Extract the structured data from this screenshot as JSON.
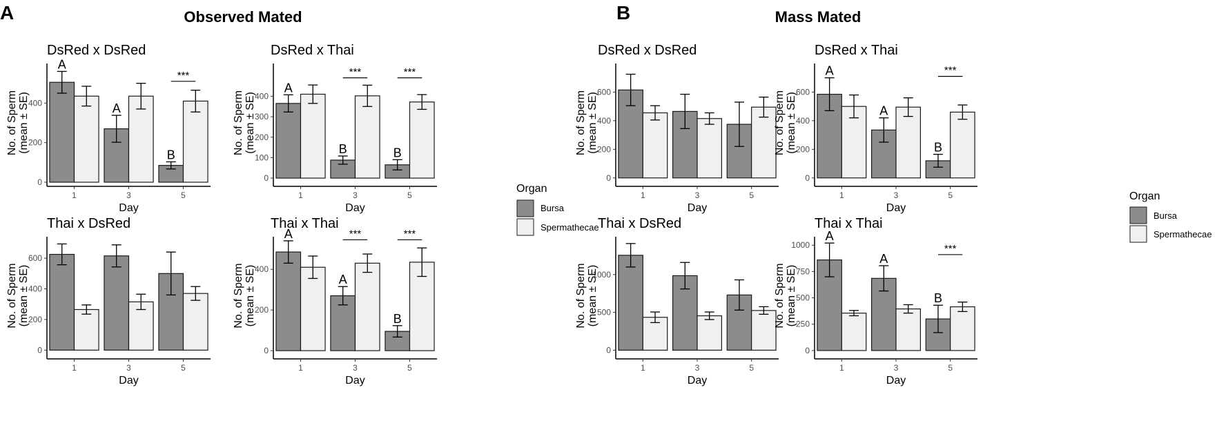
{
  "figure": {
    "panels": [
      {
        "letter": "A",
        "title": "Observed Mated"
      },
      {
        "letter": "B",
        "title": "Mass Mated"
      }
    ],
    "legends": [
      {
        "title": "Organ",
        "items": [
          {
            "label": "Bursa",
            "color": "#8c8c8c"
          },
          {
            "label": "Spermathecae",
            "color": "#f0f0f0"
          }
        ]
      },
      {
        "title": "Organ",
        "items": [
          {
            "label": "Bursa",
            "color": "#8c8c8c"
          },
          {
            "label": "Spermathecae",
            "color": "#f0f0f0"
          }
        ]
      }
    ]
  },
  "colors": {
    "bursa": "#8c8c8c",
    "spermathecae": "#f0f0f0",
    "outline": "#1a1a1a",
    "axis": "#000000"
  },
  "chart_data": [
    {
      "type": "bar",
      "panel": "A",
      "title": "DsRed x DsRed",
      "xlabel": "Day",
      "ylabel": [
        "No. of Sperm",
        "(mean ± SE)"
      ],
      "categories": [
        "1",
        "3",
        "5"
      ],
      "ylim": [
        0,
        600
      ],
      "yticks": [
        0,
        200,
        400
      ],
      "series": [
        {
          "name": "Bursa",
          "values": [
            505,
            270,
            85
          ],
          "errors": [
            55,
            68,
            18
          ]
        },
        {
          "name": "Spermathecae",
          "values": [
            435,
            435,
            410
          ],
          "errors": [
            50,
            65,
            55
          ]
        }
      ],
      "letters": [
        {
          "category": 0,
          "series": 0,
          "text": "A"
        },
        {
          "category": 1,
          "series": 0,
          "text": "A"
        },
        {
          "category": 2,
          "series": 0,
          "text": "B"
        }
      ],
      "significance": [
        {
          "category": 2,
          "text": "***",
          "y": 510
        }
      ]
    },
    {
      "type": "bar",
      "panel": "A",
      "title": "DsRed x Thai",
      "xlabel": "Day",
      "ylabel": [
        "No. of Sperm",
        "(mean ± SE)"
      ],
      "categories": [
        "1",
        "3",
        "5"
      ],
      "ylim": [
        -20,
        560
      ],
      "yticks": [
        0,
        100,
        200,
        300,
        400
      ],
      "series": [
        {
          "name": "Bursa",
          "values": [
            365,
            88,
            65
          ],
          "errors": [
            42,
            20,
            25
          ]
        },
        {
          "name": "Spermathecae",
          "values": [
            410,
            402,
            372
          ],
          "errors": [
            45,
            52,
            36
          ]
        }
      ],
      "letters": [
        {
          "category": 0,
          "series": 0,
          "text": "A"
        },
        {
          "category": 1,
          "series": 0,
          "text": "B"
        },
        {
          "category": 2,
          "series": 0,
          "text": "B"
        }
      ],
      "significance": [
        {
          "category": 1,
          "text": "***",
          "y": 490
        },
        {
          "category": 2,
          "text": "***",
          "y": 490
        }
      ]
    },
    {
      "type": "bar",
      "panel": "A",
      "title": "Thai x DsRed",
      "xlabel": "Day",
      "ylabel": [
        "No. of Sperm",
        "(mean ± SE)"
      ],
      "categories": [
        "1",
        "3",
        "5"
      ],
      "ylim": [
        -30,
        740
      ],
      "yticks": [
        0,
        200,
        400,
        600
      ],
      "series": [
        {
          "name": "Bursa",
          "values": [
            625,
            615,
            500
          ],
          "errors": [
            68,
            72,
            140
          ]
        },
        {
          "name": "Spermathecae",
          "values": [
            265,
            315,
            370
          ],
          "errors": [
            30,
            50,
            45
          ]
        }
      ],
      "letters": [],
      "significance": []
    },
    {
      "type": "bar",
      "panel": "A",
      "title": "Thai x Thai",
      "xlabel": "Day",
      "ylabel": [
        "No. of Sperm",
        "(mean ± SE)"
      ],
      "categories": [
        "1",
        "3",
        "5"
      ],
      "ylim": [
        -20,
        560
      ],
      "yticks": [
        0,
        200,
        400
      ],
      "series": [
        {
          "name": "Bursa",
          "values": [
            485,
            270,
            95
          ],
          "errors": [
            55,
            45,
            28
          ]
        },
        {
          "name": "Spermathecae",
          "values": [
            410,
            430,
            435
          ],
          "errors": [
            55,
            45,
            70
          ]
        }
      ],
      "letters": [
        {
          "category": 0,
          "series": 0,
          "text": "A"
        },
        {
          "category": 1,
          "series": 0,
          "text": "A"
        },
        {
          "category": 2,
          "series": 0,
          "text": "B"
        }
      ],
      "significance": [
        {
          "category": 1,
          "text": "***",
          "y": 545
        },
        {
          "category": 2,
          "text": "***",
          "y": 545
        }
      ]
    },
    {
      "type": "bar",
      "panel": "B",
      "title": "DsRed x DsRed",
      "xlabel": "Day",
      "ylabel": [
        "No. of Sperm",
        "(mean ± SE)"
      ],
      "categories": [
        "1",
        "3",
        "5"
      ],
      "ylim": [
        -30,
        800
      ],
      "yticks": [
        0,
        200,
        400,
        600
      ],
      "series": [
        {
          "name": "Bursa",
          "values": [
            615,
            465,
            375
          ],
          "errors": [
            110,
            120,
            155
          ]
        },
        {
          "name": "Spermathecae",
          "values": [
            455,
            415,
            495
          ],
          "errors": [
            50,
            40,
            70
          ]
        }
      ],
      "letters": [],
      "significance": []
    },
    {
      "type": "bar",
      "panel": "B",
      "title": "DsRed x Thai",
      "xlabel": "Day",
      "ylabel": [
        "No. of Sperm",
        "(mean ± SE)"
      ],
      "categories": [
        "1",
        "3",
        "5"
      ],
      "ylim": [
        -30,
        800
      ],
      "yticks": [
        0,
        200,
        400,
        600
      ],
      "series": [
        {
          "name": "Bursa",
          "values": [
            585,
            335,
            120
          ],
          "errors": [
            115,
            85,
            45
          ]
        },
        {
          "name": "Spermathecae",
          "values": [
            500,
            495,
            460
          ],
          "errors": [
            80,
            65,
            50
          ]
        }
      ],
      "letters": [
        {
          "category": 0,
          "series": 0,
          "text": "A"
        },
        {
          "category": 1,
          "series": 0,
          "text": "A"
        },
        {
          "category": 2,
          "series": 0,
          "text": "B"
        }
      ],
      "significance": [
        {
          "category": 2,
          "text": "***",
          "y": 710
        }
      ]
    },
    {
      "type": "bar",
      "panel": "B",
      "title": "Thai x DsRed",
      "xlabel": "Day",
      "ylabel": [
        "No. of Sperm",
        "(mean ± SE)"
      ],
      "categories": [
        "1",
        "3",
        "5"
      ],
      "ylim": [
        -60,
        1500
      ],
      "yticks": [
        0,
        500,
        1000
      ],
      "series": [
        {
          "name": "Bursa",
          "values": [
            1255,
            985,
            730
          ],
          "errors": [
            155,
            175,
            200
          ]
        },
        {
          "name": "Spermathecae",
          "values": [
            435,
            455,
            525
          ],
          "errors": [
            70,
            50,
            50
          ]
        }
      ],
      "letters": [],
      "significance": []
    },
    {
      "type": "bar",
      "panel": "B",
      "title": "Thai x Thai",
      "xlabel": "Day",
      "ylabel": [
        "No. of Sperm",
        "(mean ± SE)"
      ],
      "categories": [
        "1",
        "3",
        "5"
      ],
      "ylim": [
        -40,
        1080
      ],
      "yticks": [
        0,
        250,
        500,
        750,
        1000
      ],
      "series": [
        {
          "name": "Bursa",
          "values": [
            860,
            685,
            300
          ],
          "errors": [
            160,
            120,
            130
          ]
        },
        {
          "name": "Spermathecae",
          "values": [
            355,
            395,
            415
          ],
          "errors": [
            25,
            40,
            45
          ]
        }
      ],
      "letters": [
        {
          "category": 0,
          "series": 0,
          "text": "A"
        },
        {
          "category": 1,
          "series": 0,
          "text": "A"
        },
        {
          "category": 2,
          "series": 0,
          "text": "B"
        }
      ],
      "significance": [
        {
          "category": 2,
          "text": "***",
          "y": 910
        }
      ]
    }
  ]
}
